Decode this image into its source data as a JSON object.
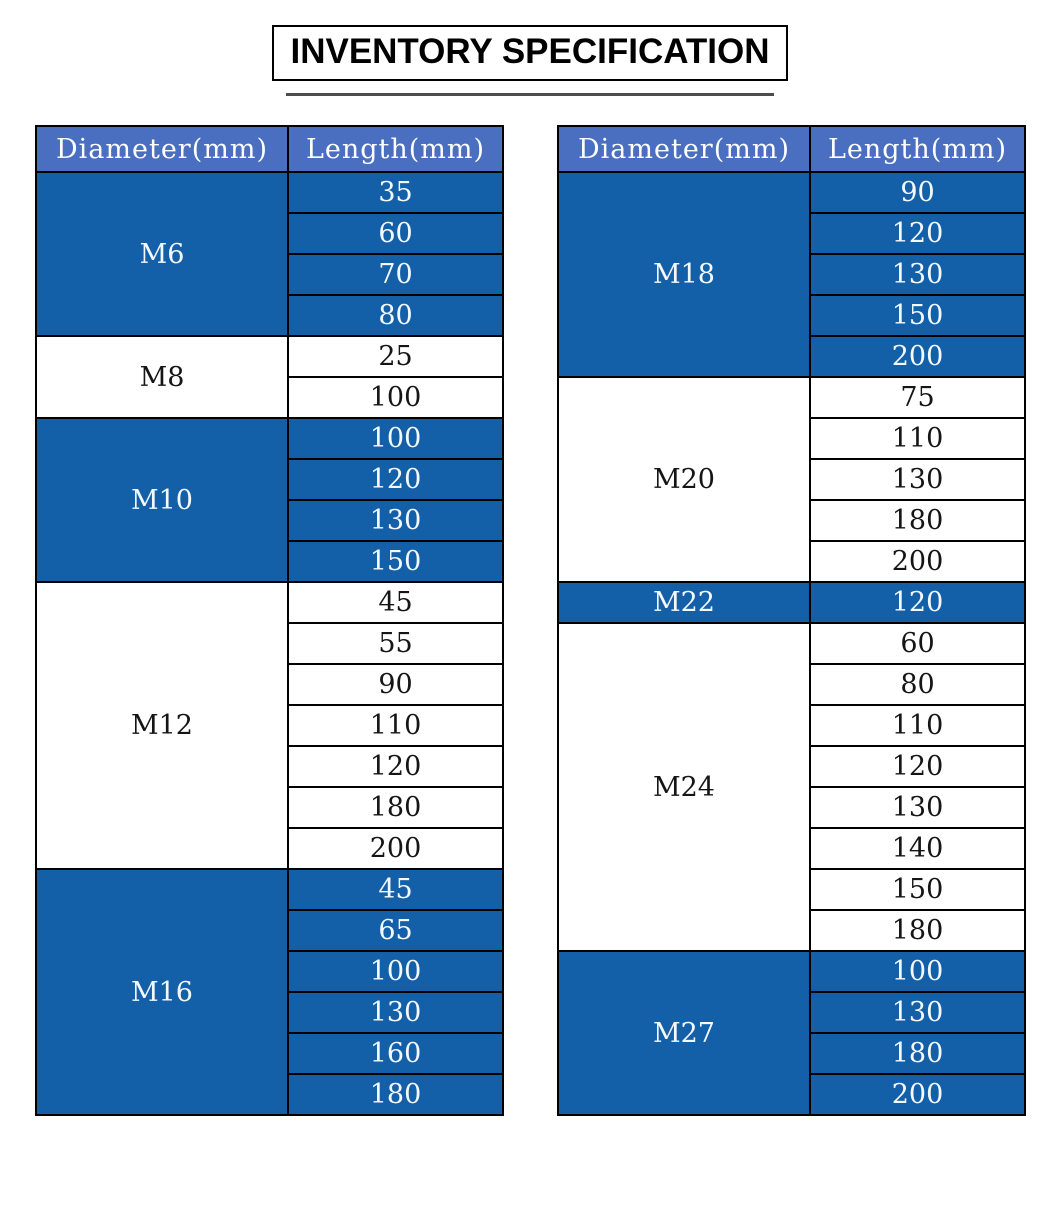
{
  "title": "INVENTORY SPECIFICATION",
  "colors": {
    "header_bg": "#4a6ec0",
    "section_blue": "#1460a8",
    "row_white": "#ffffff",
    "border": "#000000",
    "underline": "#4d4d4d",
    "text_on_blue": "#f4f8ff",
    "text_on_white": "#151515"
  },
  "tables": [
    {
      "headers": [
        "Diameter(mm)",
        "Length(mm)"
      ],
      "groups": [
        {
          "diameter": "M6",
          "style": "blue",
          "lengths": [
            "35",
            "60",
            "70",
            "80"
          ]
        },
        {
          "diameter": "M8",
          "style": "white",
          "lengths": [
            "25",
            "100"
          ]
        },
        {
          "diameter": "M10",
          "style": "blue",
          "lengths": [
            "100",
            "120",
            "130",
            "150"
          ]
        },
        {
          "diameter": "M12",
          "style": "white",
          "lengths": [
            "45",
            "55",
            "90",
            "110",
            "120",
            "180",
            "200"
          ]
        },
        {
          "diameter": "M16",
          "style": "blue",
          "lengths": [
            "45",
            "65",
            "100",
            "130",
            "160",
            "180"
          ]
        }
      ]
    },
    {
      "headers": [
        "Diameter(mm)",
        "Length(mm)"
      ],
      "groups": [
        {
          "diameter": "M18",
          "style": "blue",
          "lengths": [
            "90",
            "120",
            "130",
            "150",
            "200"
          ]
        },
        {
          "diameter": "M20",
          "style": "white",
          "lengths": [
            "75",
            "110",
            "130",
            "180",
            "200"
          ]
        },
        {
          "diameter": "M22",
          "style": "blue",
          "lengths": [
            "120"
          ]
        },
        {
          "diameter": "M24",
          "style": "white",
          "lengths": [
            "60",
            "80",
            "110",
            "120",
            "130",
            "140",
            "150",
            "180"
          ]
        },
        {
          "diameter": "M27",
          "style": "blue",
          "lengths": [
            "100",
            "130",
            "180",
            "200"
          ]
        }
      ]
    }
  ]
}
